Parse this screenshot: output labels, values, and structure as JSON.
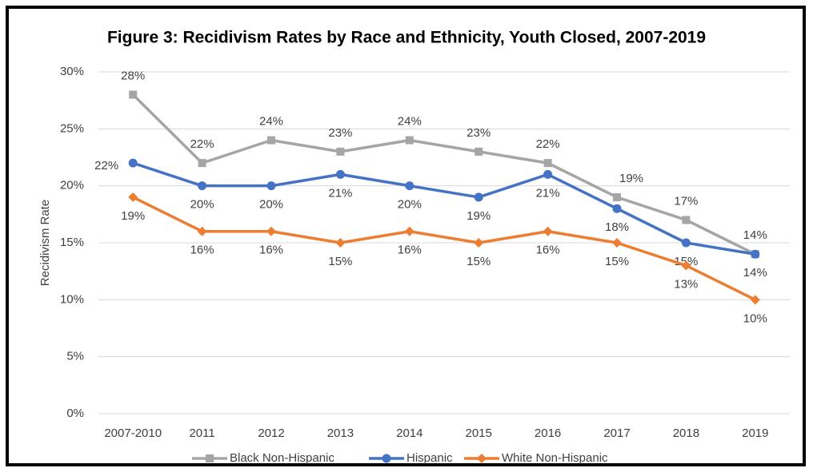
{
  "chart_data": {
    "type": "line",
    "title": "Figure 3:  Recidivism Rates by Race and Ethnicity, Youth Closed, 2007-2019",
    "y_label": "Recidivism Rate",
    "categories": [
      "2007-2010",
      "2011",
      "2012",
      "2013",
      "2014",
      "2015",
      "2016",
      "2017",
      "2018",
      "2019"
    ],
    "series": [
      {
        "name": "Black Non-Hispanic",
        "color": "#a5a5a5",
        "marker": "square",
        "values": [
          28,
          22,
          24,
          23,
          24,
          23,
          22,
          19,
          17,
          14
        ],
        "value_labels": [
          "28%",
          "22%",
          "24%",
          "23%",
          "24%",
          "23%",
          "22%",
          "19%",
          "17%",
          "14%"
        ]
      },
      {
        "name": "Hispanic",
        "color": "#4472c4",
        "marker": "circle",
        "values": [
          22,
          20,
          20,
          21,
          20,
          19,
          21,
          18,
          15,
          14
        ],
        "value_labels": [
          "22%",
          "20%",
          "20%",
          "21%",
          "20%",
          "19%",
          "21%",
          "18%",
          "15%",
          "14%"
        ]
      },
      {
        "name": "White Non-Hispanic",
        "color": "#ed7d31",
        "marker": "diamond",
        "values": [
          19,
          16,
          16,
          15,
          16,
          15,
          16,
          15,
          13,
          10
        ],
        "value_labels": [
          "19%",
          "16%",
          "16%",
          "15%",
          "16%",
          "15%",
          "16%",
          "15%",
          "13%",
          "10%"
        ]
      }
    ],
    "ylim": [
      0,
      30
    ],
    "yticks": [
      {
        "value": 0,
        "label": "0%"
      },
      {
        "value": 5,
        "label": "5%"
      },
      {
        "value": 10,
        "label": "10%"
      },
      {
        "value": 15,
        "label": "15%"
      },
      {
        "value": 20,
        "label": "20%"
      },
      {
        "value": 25,
        "label": "25%"
      },
      {
        "value": 30,
        "label": "30%"
      }
    ],
    "grid": true,
    "legend": "bottom"
  }
}
